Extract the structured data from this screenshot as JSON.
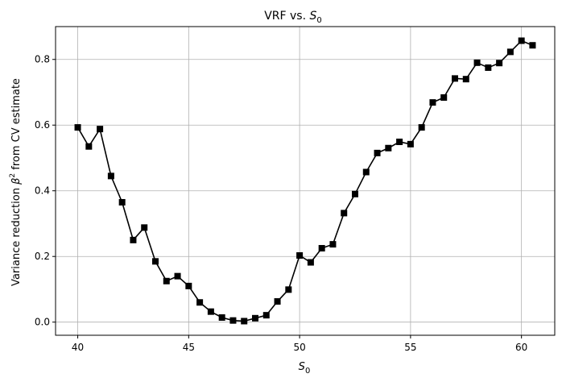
{
  "chart_data": {
    "type": "line",
    "title_prefix": "VRF vs. ",
    "title_symbol": "S",
    "title_subscript": "0",
    "xlabel_symbol": "S",
    "xlabel_subscript": "0",
    "ylabel_prefix": "Variance reduction ",
    "ylabel_symbol": "β",
    "ylabel_superscript": "2",
    "ylabel_suffix": " from CV estimate",
    "xlim": [
      39.0,
      61.5
    ],
    "ylim": [
      -0.04,
      0.9
    ],
    "xticks": [
      40,
      45,
      50,
      55,
      60
    ],
    "yticks": [
      0.0,
      0.2,
      0.4,
      0.6,
      0.8
    ],
    "ytick_labels": [
      "0.0",
      "0.2",
      "0.4",
      "0.6",
      "0.8"
    ],
    "grid": true,
    "line_color": "#000000",
    "marker": "square",
    "series": [
      {
        "x": [
          40.0,
          40.5,
          41.0,
          41.5,
          42.0,
          42.5,
          43.0,
          43.5,
          44.0,
          44.5,
          45.0,
          45.5,
          46.0,
          46.5,
          47.0,
          47.5,
          48.0,
          48.5,
          49.0,
          49.5,
          50.0,
          50.5,
          51.0,
          51.5,
          52.0,
          52.5,
          53.0,
          53.5,
          54.0,
          54.5,
          55.0,
          55.5,
          56.0,
          56.5,
          57.0,
          57.5,
          58.0,
          58.5,
          59.0,
          59.5,
          60.0,
          60.5
        ],
        "y": [
          0.593,
          0.535,
          0.588,
          0.445,
          0.365,
          0.25,
          0.288,
          0.185,
          0.125,
          0.14,
          0.11,
          0.06,
          0.032,
          0.014,
          0.005,
          0.003,
          0.012,
          0.021,
          0.063,
          0.099,
          0.203,
          0.182,
          0.225,
          0.237,
          0.332,
          0.39,
          0.457,
          0.515,
          0.53,
          0.549,
          0.542,
          0.593,
          0.669,
          0.684,
          0.742,
          0.74,
          0.79,
          0.775,
          0.789,
          0.823,
          0.857,
          0.843
        ]
      }
    ]
  }
}
